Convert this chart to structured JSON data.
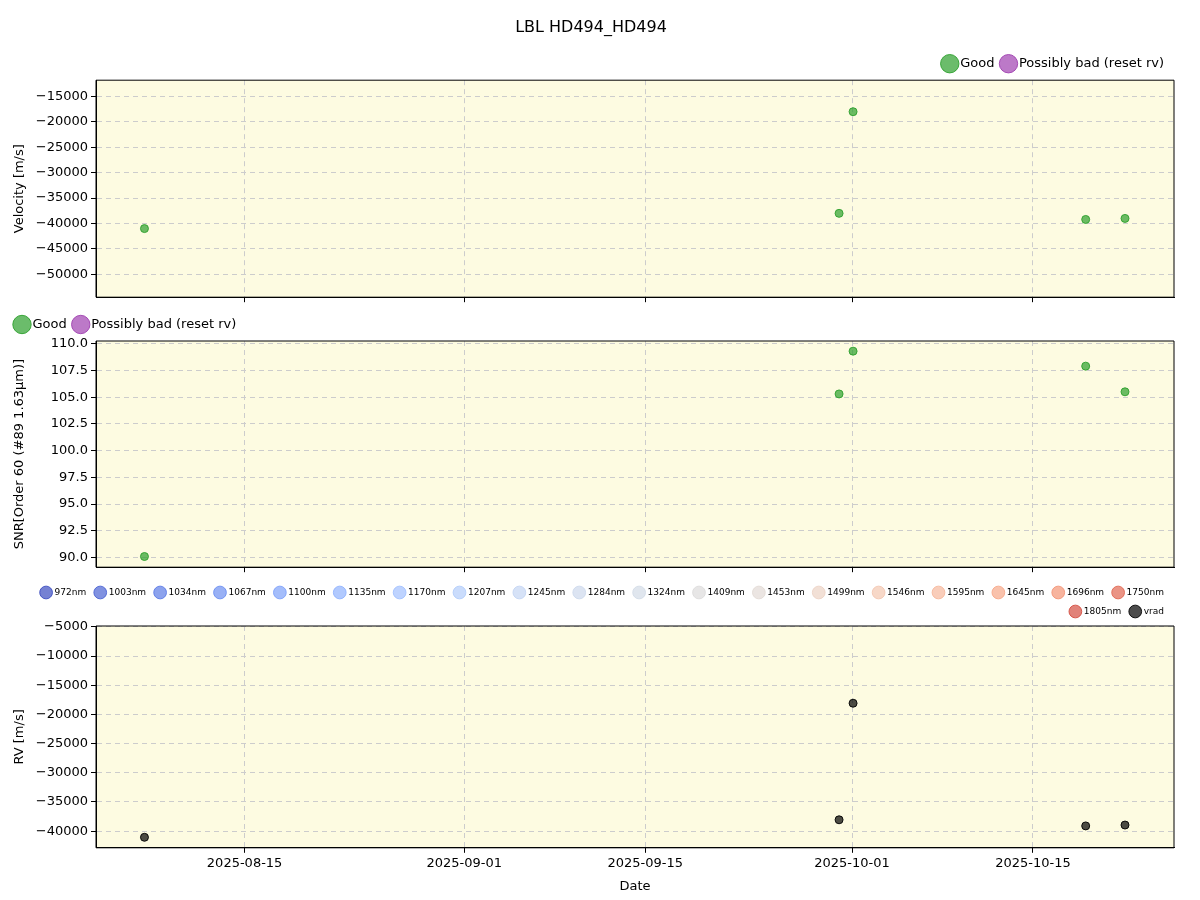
{
  "chart_data": [
    {
      "type": "scatter",
      "title": "LBL HD494_HD494",
      "ylabel": "Velocity [m/s]",
      "x": [
        "2025-08-07T06:00",
        "2025-09-30T00:00",
        "2025-10-01T02:00",
        "2025-10-19T02:00",
        "2025-10-22T03:00"
      ],
      "series": [
        {
          "name": "Good",
          "color": "#2ca02c",
          "values": [
            -41000,
            -38000,
            -18000,
            -39200,
            -39000
          ]
        },
        {
          "name": "Possibly bad (reset rv)",
          "color": "#a040b0",
          "values": [
            null,
            null,
            null,
            null,
            null
          ]
        }
      ],
      "xlim": [
        "2025-08-03T12:00",
        "2025-10-25T22:00"
      ],
      "xticks": [
        "2025-08-15",
        "2025-09-01",
        "2025-09-15",
        "2025-10-01",
        "2025-10-15"
      ],
      "ylim": [
        -54500,
        -11800
      ],
      "yticks": [
        {
          "value": -50000,
          "label": "−50000"
        },
        {
          "value": -45000,
          "label": "−45000"
        },
        {
          "value": -40000,
          "label": "−40000"
        },
        {
          "value": -35000,
          "label": "−35000"
        },
        {
          "value": -30000,
          "label": "−30000"
        },
        {
          "value": -25000,
          "label": "−25000"
        },
        {
          "value": -20000,
          "label": "−20000"
        },
        {
          "value": -15000,
          "label": "−15000"
        }
      ],
      "grid": true,
      "legend": "top right",
      "marker": "circle",
      "tick_labels": "y"
    },
    {
      "type": "scatter",
      "ylabel": "SNR[Order 60 (#89 1.63μm)]",
      "x": [
        "2025-08-07T06:00",
        "2025-09-30T00:00",
        "2025-10-01T02:00",
        "2025-10-19T02:00",
        "2025-10-22T03:00"
      ],
      "series": [
        {
          "name": "Good",
          "color": "#2ca02c",
          "values": [
            90.1,
            105.3,
            109.3,
            107.9,
            105.5
          ]
        },
        {
          "name": "Possibly bad (reset rv)",
          "color": "#a040b0",
          "values": [
            null,
            null,
            null,
            null,
            null
          ]
        }
      ],
      "xlim": [
        "2025-08-03T12:00",
        "2025-10-25T22:00"
      ],
      "xticks": [
        "2025-08-15",
        "2025-09-01",
        "2025-09-15",
        "2025-10-01",
        "2025-10-15"
      ],
      "ylim": [
        89.1,
        110.25
      ],
      "yticks": [
        {
          "value": 90,
          "label": "90.0"
        },
        {
          "value": 92.5,
          "label": "92.5"
        },
        {
          "value": 95,
          "label": "95.0"
        },
        {
          "value": 97.5,
          "label": "97.5"
        },
        {
          "value": 100,
          "label": "100.0"
        },
        {
          "value": 102.5,
          "label": "102.5"
        },
        {
          "value": 105,
          "label": "105.0"
        },
        {
          "value": 107.5,
          "label": "107.5"
        },
        {
          "value": 110,
          "label": "110.0"
        }
      ],
      "grid": true,
      "legend": "top left",
      "marker": "circle",
      "tick_labels": "y"
    },
    {
      "type": "scatter",
      "xlabel": "Date",
      "ylabel": "RV [m/s]",
      "x": [
        "2025-08-07T06:00",
        "2025-09-30T00:00",
        "2025-10-01T02:00",
        "2025-10-19T02:00",
        "2025-10-22T03:00"
      ],
      "series": [
        {
          "name": "972nm",
          "color": "#3b4cc0",
          "values": [
            null,
            null,
            null,
            null,
            null
          ]
        },
        {
          "name": "1003nm",
          "color": "#4a63d3",
          "values": [
            null,
            null,
            null,
            null,
            null
          ]
        },
        {
          "name": "1034nm",
          "color": "#5b7ae5",
          "values": [
            null,
            null,
            null,
            null,
            null
          ]
        },
        {
          "name": "1067nm",
          "color": "#6c8ff1",
          "values": [
            null,
            null,
            null,
            null,
            null
          ]
        },
        {
          "name": "1100nm",
          "color": "#7ea1fa",
          "values": [
            null,
            null,
            null,
            null,
            null
          ]
        },
        {
          "name": "1135nm",
          "color": "#90b2fe",
          "values": [
            null,
            null,
            null,
            null,
            null
          ]
        },
        {
          "name": "1170nm",
          "color": "#a2c1ff",
          "values": [
            null,
            null,
            null,
            null,
            null
          ]
        },
        {
          "name": "1207nm",
          "color": "#b3cdfb",
          "values": [
            null,
            null,
            null,
            null,
            null
          ]
        },
        {
          "name": "1245nm",
          "color": "#c4d5f3",
          "values": [
            null,
            null,
            null,
            null,
            null
          ]
        },
        {
          "name": "1284nm",
          "color": "#cdd9ec",
          "values": [
            null,
            null,
            null,
            null,
            null
          ]
        },
        {
          "name": "1324nm",
          "color": "#d3dbe7",
          "values": [
            null,
            null,
            null,
            null,
            null
          ]
        },
        {
          "name": "1409nm",
          "color": "#dddcdc",
          "values": [
            null,
            null,
            null,
            null,
            null
          ]
        },
        {
          "name": "1453nm",
          "color": "#e2dad5",
          "values": [
            null,
            null,
            null,
            null,
            null
          ]
        },
        {
          "name": "1499nm",
          "color": "#ecd3c5",
          "values": [
            null,
            null,
            null,
            null,
            null
          ]
        },
        {
          "name": "1546nm",
          "color": "#f3c7b1",
          "values": [
            null,
            null,
            null,
            null,
            null
          ]
        },
        {
          "name": "1595nm",
          "color": "#f6b89c",
          "values": [
            null,
            null,
            null,
            null,
            null
          ]
        },
        {
          "name": "1645nm",
          "color": "#f7a889",
          "values": [
            null,
            null,
            null,
            null,
            null
          ]
        },
        {
          "name": "1696nm",
          "color": "#f39475",
          "values": [
            null,
            null,
            null,
            null,
            null
          ]
        },
        {
          "name": "1750nm",
          "color": "#e16751",
          "values": [
            null,
            null,
            null,
            null,
            null
          ]
        },
        {
          "name": "1805nm",
          "color": "#d44e41",
          "values": [
            null,
            null,
            null,
            null,
            null
          ]
        },
        {
          "name": "vrad",
          "color": "#000000",
          "values": [
            -41050,
            -38050,
            -18080,
            -39100,
            -38950
          ]
        }
      ],
      "xlim": [
        "2025-08-03T12:00",
        "2025-10-25T22:00"
      ],
      "xticks": [
        "2025-08-15",
        "2025-09-01",
        "2025-09-15",
        "2025-10-01",
        "2025-10-15"
      ],
      "ylim": [
        -42850,
        -4850
      ],
      "yticks": [
        {
          "value": -40000,
          "label": "−40000"
        },
        {
          "value": -35000,
          "label": "−35000"
        },
        {
          "value": -30000,
          "label": "−30000"
        },
        {
          "value": -25000,
          "label": "−25000"
        },
        {
          "value": -20000,
          "label": "−20000"
        },
        {
          "value": -15000,
          "label": "−15000"
        },
        {
          "value": -10000,
          "label": "−10000"
        },
        {
          "value": -5000,
          "label": "−5000"
        }
      ],
      "grid": true,
      "legend": "top right",
      "marker": "circle"
    }
  ]
}
